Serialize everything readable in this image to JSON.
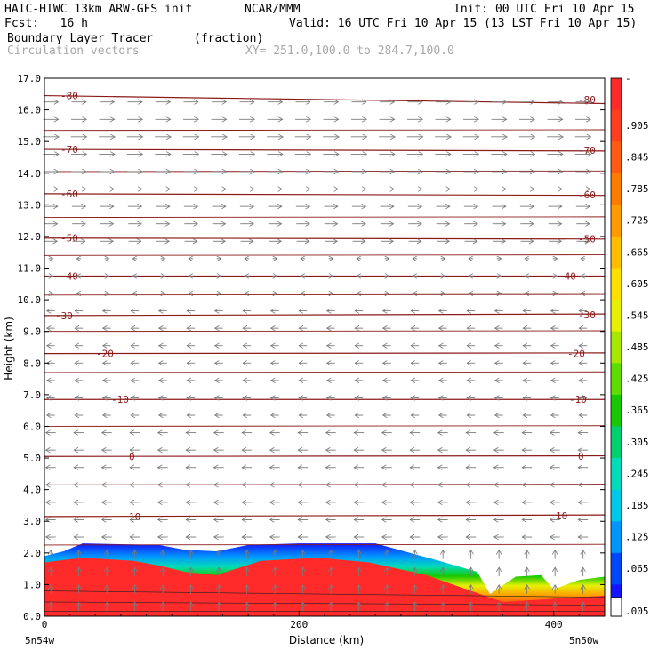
{
  "header": {
    "model": "HAIC-HIWC 13km ARW-GFS init",
    "org": "NCAR/MMM",
    "init": "Init: 00 UTC Fri 10 Apr 15",
    "fcst": "Fcst:   16 h",
    "valid": "Valid: 16 UTC Fri 10 Apr 15 (13 LST Fri 10 Apr 15)",
    "field1": "Boundary Layer Tracer",
    "field1_units": "(fraction)",
    "field2": "Circulation vectors",
    "xy": "XY= 251.0,100.0 to 284.7,100.0"
  },
  "chart_data": {
    "type": "heatmap",
    "xlabel": "Distance (km)",
    "ylabel": "Height (km)",
    "xlim": [
      0,
      440
    ],
    "ylim": [
      0,
      17
    ],
    "x_ticks": [
      0,
      200,
      400
    ],
    "y_ticks": [
      "0.0",
      "1.0",
      "2.0",
      "3.0",
      "4.0",
      "5.0",
      "6.0",
      "7.0",
      "8.0",
      "9.0",
      "10.0",
      "11.0",
      "12.0",
      "13.0",
      "14.0",
      "15.0",
      "16.0",
      "17.0"
    ],
    "x_endpoints": {
      "left": "5n54w",
      "right": "5n50w"
    },
    "colorbar_labels": [
      "-",
      ".905",
      ".845",
      ".785",
      ".725",
      ".665",
      ".605",
      ".545",
      ".485",
      ".425",
      ".365",
      ".305",
      ".245",
      ".185",
      ".125",
      ".065",
      ".005"
    ],
    "colorbar_colors": [
      "#ff2a2a",
      "#ff3d1f",
      "#ff5a12",
      "#ff7a00",
      "#ff9a00",
      "#ffbd00",
      "#ffe000",
      "#e6f000",
      "#a8e800",
      "#5fdc00",
      "#18c800",
      "#00d070",
      "#00dcb8",
      "#00c8e8",
      "#0096ff",
      "#0046ff",
      "#1414ff"
    ],
    "bl_top_km": [
      [
        0,
        1.9
      ],
      [
        15,
        2.05
      ],
      [
        30,
        2.3
      ],
      [
        90,
        2.25
      ],
      [
        110,
        2.1
      ],
      [
        135,
        2.05
      ],
      [
        160,
        2.25
      ],
      [
        200,
        2.3
      ],
      [
        260,
        2.3
      ],
      [
        310,
        1.75
      ],
      [
        340,
        1.4
      ],
      [
        350,
        0.7
      ],
      [
        370,
        1.25
      ],
      [
        390,
        1.3
      ],
      [
        400,
        0.85
      ],
      [
        420,
        1.15
      ],
      [
        440,
        1.25
      ]
    ],
    "bl_core_km": [
      [
        0,
        1.7
      ],
      [
        30,
        1.85
      ],
      [
        70,
        1.75
      ],
      [
        90,
        1.6
      ],
      [
        110,
        1.4
      ],
      [
        135,
        1.3
      ],
      [
        170,
        1.75
      ],
      [
        215,
        1.85
      ],
      [
        255,
        1.7
      ],
      [
        300,
        1.3
      ],
      [
        335,
        0.8
      ],
      [
        360,
        0.45
      ],
      [
        400,
        0.55
      ],
      [
        440,
        0.65
      ]
    ],
    "temperature_contours": [
      {
        "label": "-80",
        "y_km": 16.45,
        "slope": -0.25
      },
      {
        "label": "-70",
        "y_km": 14.75,
        "slope": -0.05
      },
      {
        "label": "-60",
        "y_km": 13.35,
        "slope": -0.05
      },
      {
        "label": "-50",
        "y_km": 11.95,
        "slope": -0.03
      },
      {
        "label": "-40",
        "y_km": 10.75,
        "slope": 0.0
      },
      {
        "label": "-30",
        "y_km": 9.5,
        "slope": 0.05
      },
      {
        "label": "-20",
        "y_km": 8.3,
        "slope": 0.02
      },
      {
        "label": "-10",
        "y_km": 6.85,
        "slope": 0.0
      },
      {
        "label": "0",
        "y_km": 5.05,
        "slope": 0.02
      },
      {
        "label": "10",
        "y_km": 3.15,
        "slope": 0.05
      }
    ]
  }
}
